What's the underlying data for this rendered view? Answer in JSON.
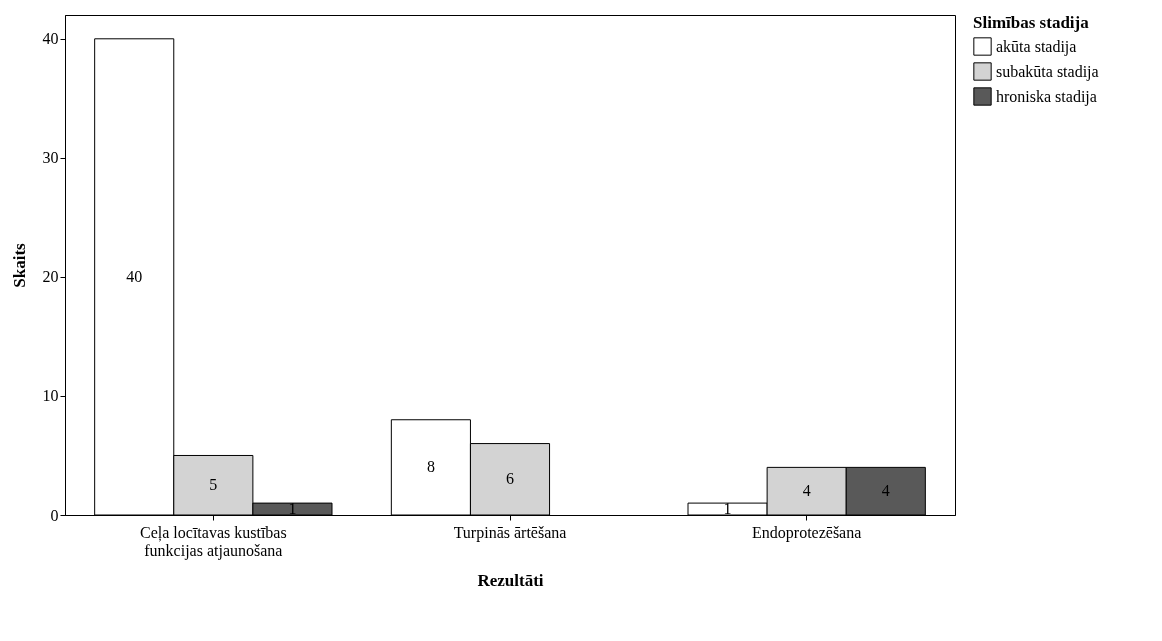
{
  "chart_data": {
    "type": "bar",
    "xlabel": "Rezultāti",
    "ylabel": "Skaits",
    "legend_title": "Slimības stadija",
    "legend": "right",
    "data_labels": true,
    "grid": false,
    "categories": [
      "Ceļa locītavas kustības funkcijas atjaunošana",
      "Turpinās ārtēšana",
      "Endoprotezēšana"
    ],
    "ylim": [
      0,
      42
    ],
    "yticks": [
      0,
      10,
      20,
      30,
      40
    ],
    "series": [
      {
        "name": "akūta stadija",
        "color": "#ffffff",
        "values": [
          40,
          8,
          1
        ]
      },
      {
        "name": "subakūta stadija",
        "color": "#d3d3d3",
        "values": [
          5,
          6,
          4
        ]
      },
      {
        "name": "hroniska stadija",
        "color": "#595959",
        "values": [
          1,
          null,
          4
        ]
      }
    ]
  }
}
